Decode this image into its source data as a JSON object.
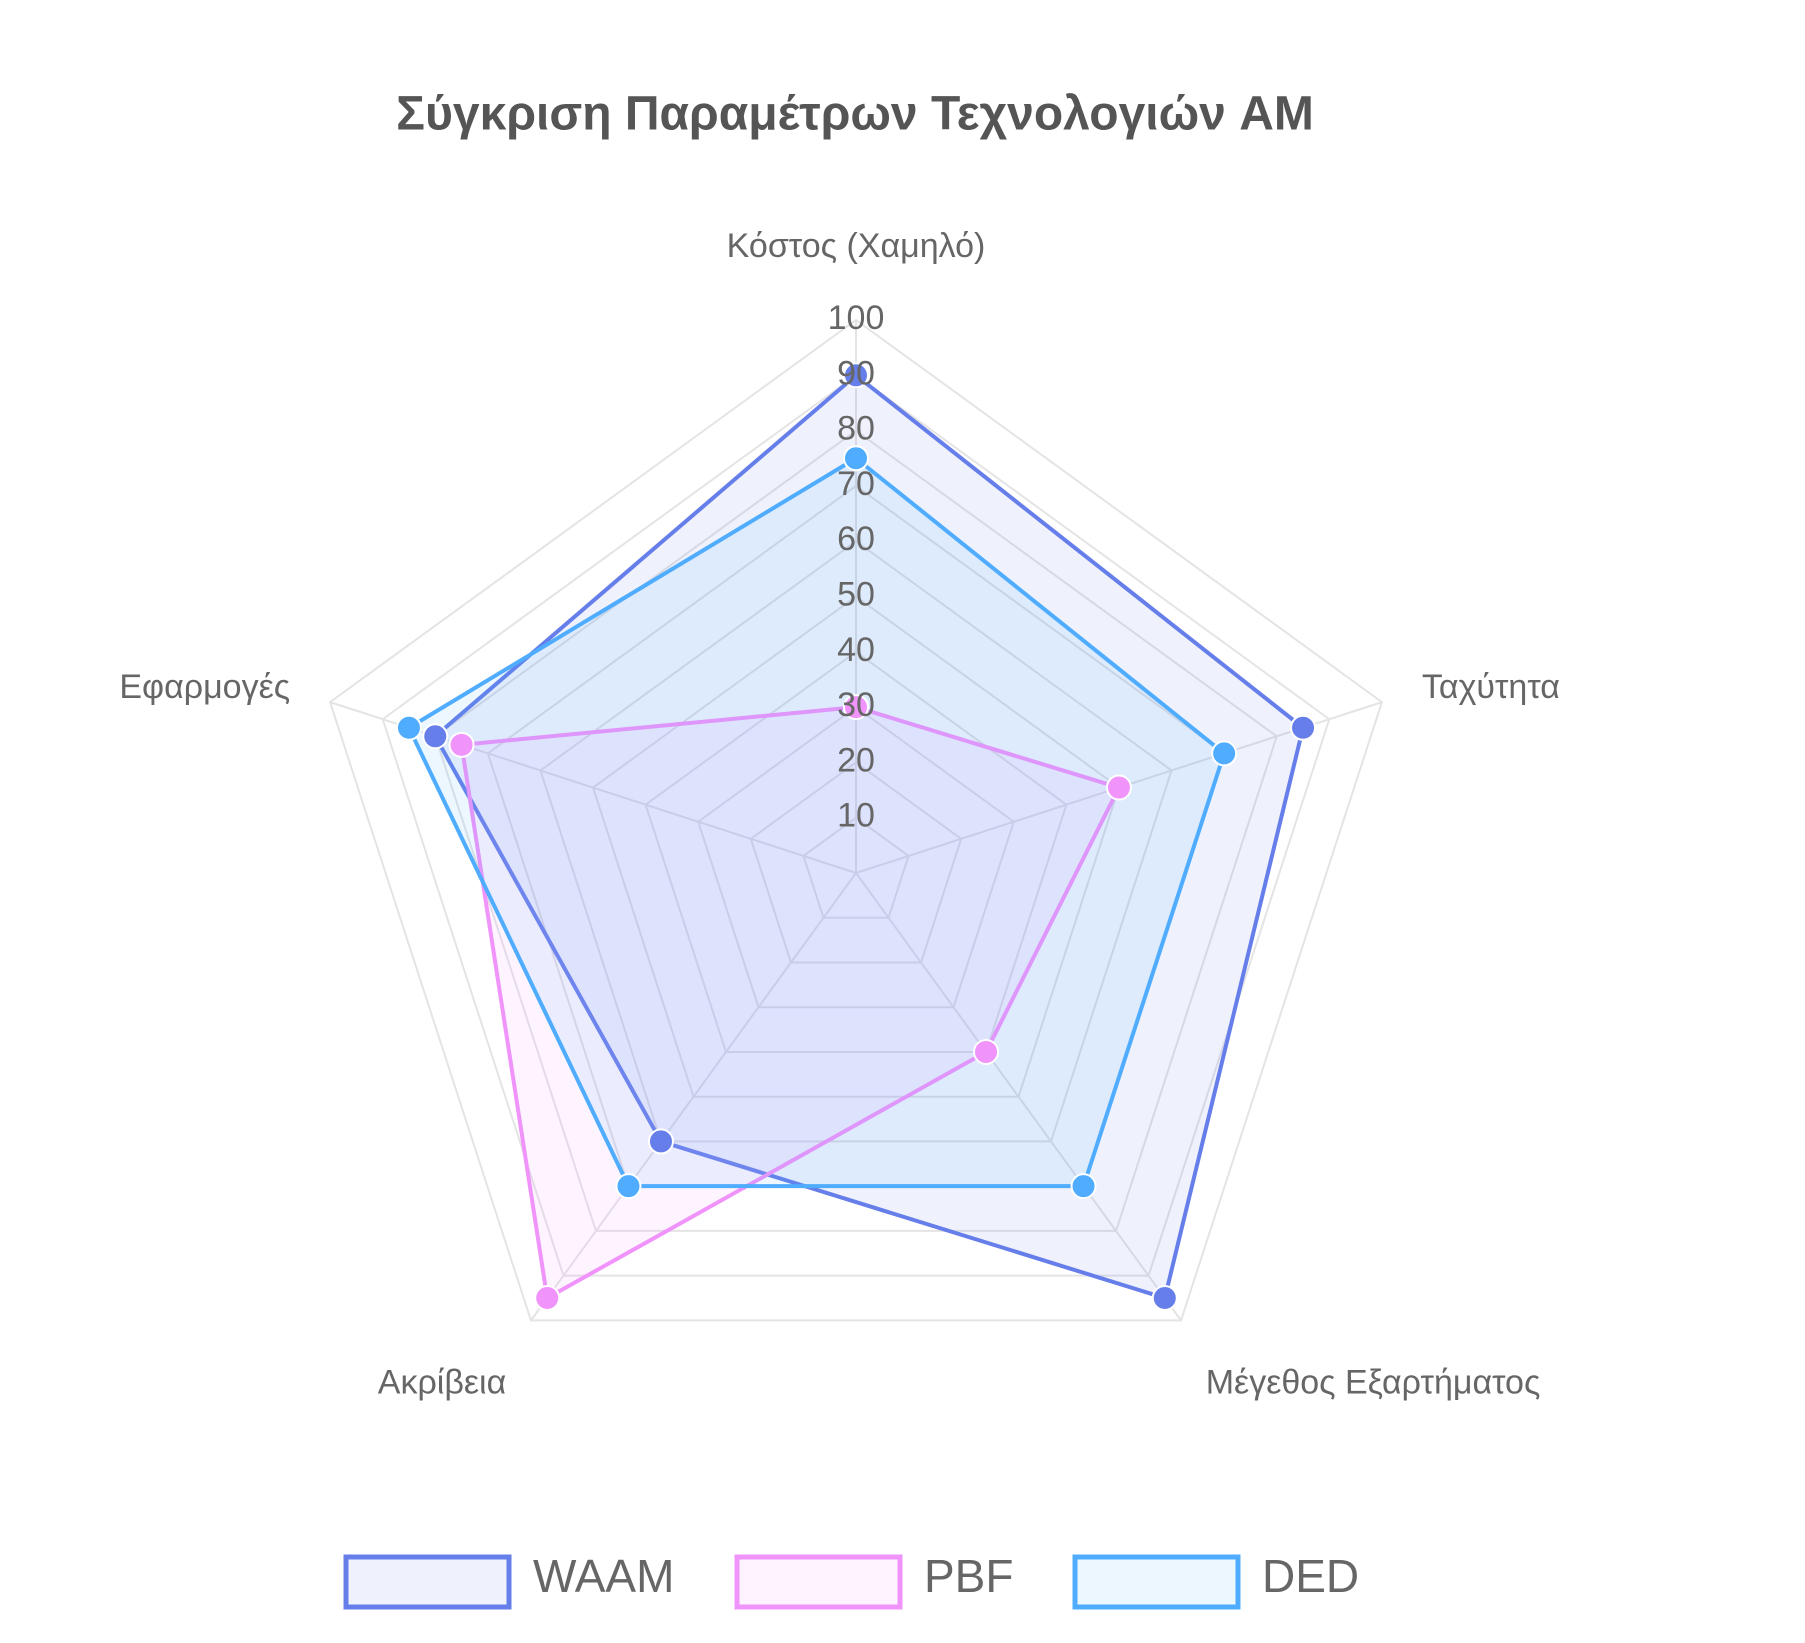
{
  "chart_data": {
    "type": "radar",
    "title": "Σύγκριση Παραμέτρων Τεχνολογιών AM",
    "categories": [
      "Κόστος (Χαμηλό)",
      "Ταχύτητα",
      "Μέγεθος Εξαρτήματος",
      "Ακρίβεια",
      "Εφαρμογές"
    ],
    "series": [
      {
        "name": "WAAM",
        "color": "#667eea",
        "values": [
          90,
          85,
          95,
          60,
          80
        ]
      },
      {
        "name": "PBF",
        "color": "#f093fb",
        "values": [
          30,
          50,
          40,
          95,
          75
        ]
      },
      {
        "name": "DED",
        "color": "#4facfe",
        "values": [
          75,
          70,
          70,
          70,
          85
        ]
      }
    ],
    "rlim": [
      0,
      100
    ],
    "rticks": [
      10,
      20,
      30,
      40,
      50,
      60,
      70,
      80,
      90,
      100
    ],
    "grid": true,
    "legend": "bottom"
  }
}
